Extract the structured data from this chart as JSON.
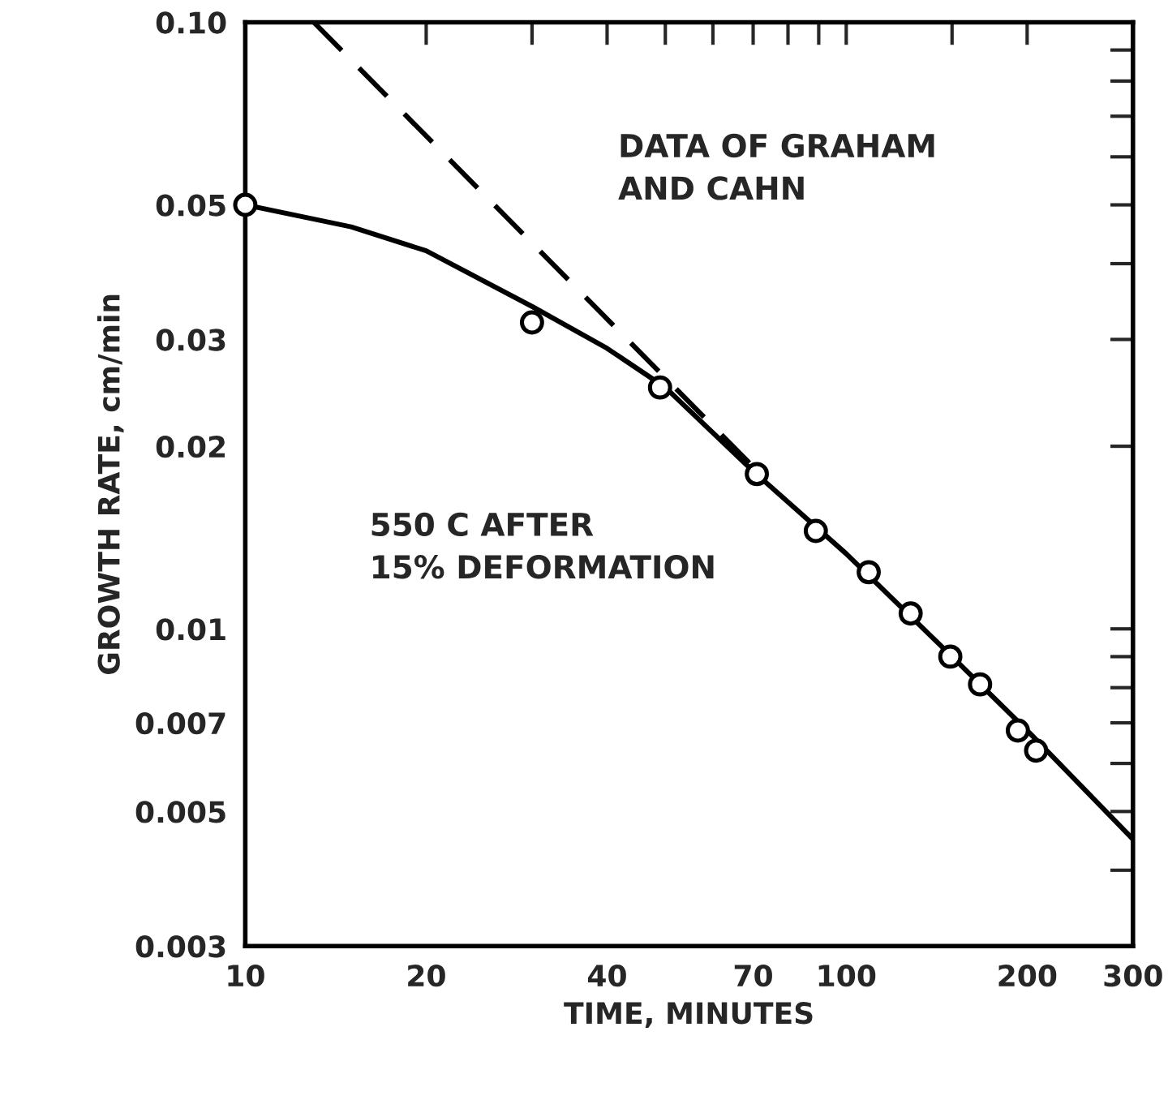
{
  "chart_data": {
    "type": "line",
    "xlabel": "TIME, MINUTES",
    "ylabel": "GROWTH RATE, cm/min",
    "log": "xy",
    "grid": false,
    "legend": false,
    "xlim": [
      10,
      300
    ],
    "ylim": [
      0.003,
      0.1
    ],
    "xticks": [
      10,
      20,
      {
        "value": 30,
        "label": null
      },
      40,
      {
        "value": 50,
        "label": null
      },
      {
        "value": 60,
        "label": null
      },
      70,
      {
        "value": 80,
        "label": null
      },
      {
        "value": 90,
        "label": null
      },
      100,
      {
        "value": 150,
        "label": null
      },
      200,
      300
    ],
    "yticks": [
      0.003,
      {
        "value": 0.004,
        "label": null
      },
      0.005,
      {
        "value": 0.006,
        "label": null
      },
      0.007,
      {
        "value": 0.008,
        "label": null
      },
      {
        "value": 0.009,
        "label": null
      },
      0.01,
      0.02,
      0.03,
      {
        "value": 0.04,
        "label": null
      },
      0.05,
      {
        "value": 0.06,
        "label": null
      },
      {
        "value": 0.07,
        "label": null
      },
      {
        "value": 0.08,
        "label": null
      },
      {
        "value": 0.09,
        "label": null
      },
      {
        "value": 0.1,
        "label": "0.10"
      }
    ],
    "annotations": [
      "DATA OF GRAHAM\nAND CAHN",
      "550 C AFTER\n15% DEFORMATION"
    ],
    "series": [
      {
        "type": "scatter",
        "marker": "circle",
        "color": "#000000",
        "x": [
          10,
          30,
          49,
          71,
          89,
          109,
          128,
          149,
          167,
          193,
          207
        ],
        "values": [
          0.05,
          0.032,
          0.025,
          0.018,
          0.0145,
          0.0124,
          0.0106,
          0.009,
          0.0081,
          0.0068,
          0.0063
        ]
      },
      {
        "line_style": "solid",
        "color": "#000000",
        "x": [
          10,
          15,
          20,
          30,
          40,
          50,
          70,
          100,
          150,
          200,
          300
        ],
        "values": [
          0.05,
          0.046,
          0.042,
          0.034,
          0.029,
          0.025,
          0.0182,
          0.0133,
          0.009,
          0.0068,
          0.0045
        ]
      },
      {
        "line_style": "dashed",
        "color": "#000000",
        "x": [
          13,
          70
        ],
        "values": [
          0.1,
          0.0185
        ]
      }
    ]
  }
}
